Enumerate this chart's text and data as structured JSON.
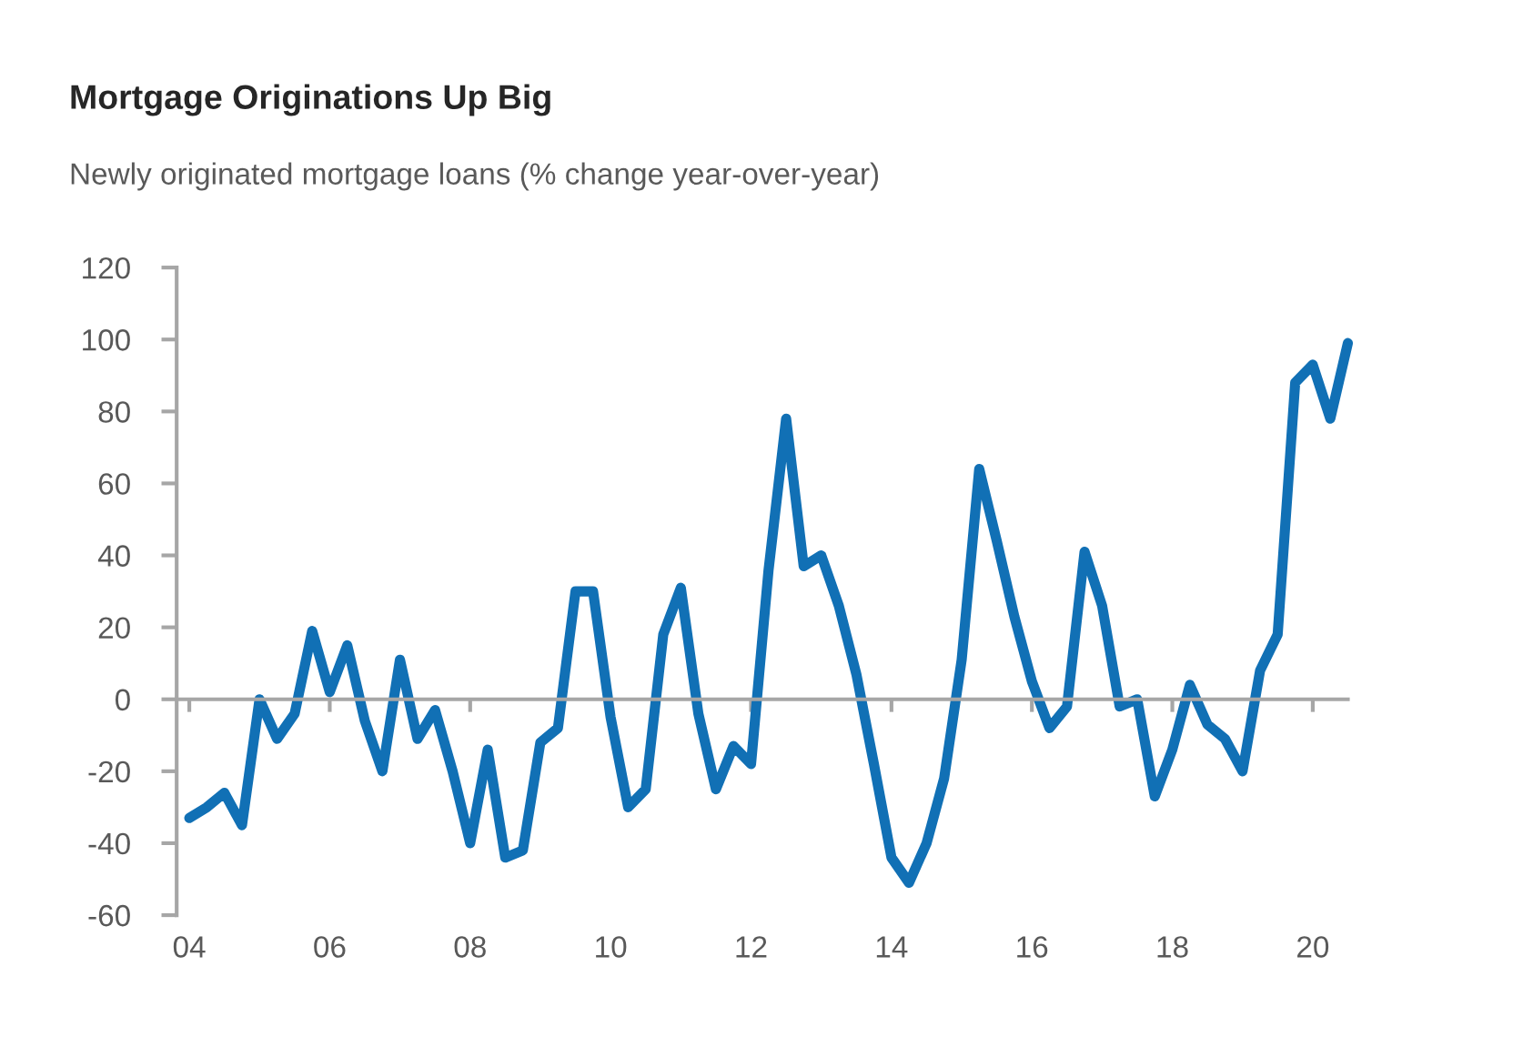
{
  "chart_data": {
    "type": "line",
    "title": "Mortgage Originations Up Big",
    "subtitle": "Newly originated mortgage loans (% change year-over-year)",
    "x": [
      2004,
      2004.25,
      2004.5,
      2004.75,
      2005,
      2005.25,
      2005.5,
      2005.75,
      2006,
      2006.25,
      2006.5,
      2006.75,
      2007,
      2007.25,
      2007.5,
      2007.75,
      2008,
      2008.25,
      2008.5,
      2008.75,
      2009,
      2009.25,
      2009.5,
      2009.75,
      2010,
      2010.25,
      2010.5,
      2010.75,
      2011,
      2011.25,
      2011.5,
      2011.75,
      2012,
      2012.25,
      2012.5,
      2012.75,
      2013,
      2013.25,
      2013.5,
      2013.75,
      2014,
      2014.25,
      2014.5,
      2014.75,
      2015,
      2015.25,
      2015.5,
      2015.75,
      2016,
      2016.25,
      2016.5,
      2016.75,
      2017,
      2017.25,
      2017.5,
      2017.75,
      2018,
      2018.25,
      2018.5,
      2018.75,
      2019,
      2019.25,
      2019.5,
      2019.75,
      2020,
      2020.25,
      2020.5
    ],
    "series": [
      {
        "color": "#1170b5",
        "values": [
          -33,
          -30,
          -26,
          -35,
          0,
          -11,
          -4,
          19,
          2,
          15,
          -6,
          -20,
          11,
          -11,
          -3,
          -20,
          -40,
          -14,
          -44,
          -42,
          -12,
          -8,
          30,
          30,
          -5,
          -30,
          -25,
          18,
          31,
          -4,
          -25,
          -13,
          -18,
          36,
          78,
          37,
          40,
          26,
          7,
          -18,
          -44,
          -51,
          -40,
          -22,
          11,
          64,
          44,
          23,
          5,
          -8,
          -2,
          41,
          26,
          -2,
          0,
          -27,
          -14,
          4,
          -7,
          -11,
          -20,
          8,
          18,
          88,
          93,
          78,
          99
        ]
      }
    ],
    "xlim": [
      2003.82,
      2020.5
    ],
    "xticks": [
      {
        "value": 2004,
        "label": "04"
      },
      {
        "value": 2006,
        "label": "06"
      },
      {
        "value": 2008,
        "label": "08"
      },
      {
        "value": 2010,
        "label": "10"
      },
      {
        "value": 2012,
        "label": "12"
      },
      {
        "value": 2014,
        "label": "14"
      },
      {
        "value": 2016,
        "label": "16"
      },
      {
        "value": 2018,
        "label": "18"
      },
      {
        "value": 2020,
        "label": "20"
      }
    ],
    "ylim": [
      -60,
      120
    ],
    "yticks": [
      -60,
      -40,
      -20,
      0,
      20,
      40,
      60,
      80,
      100,
      120
    ],
    "marker": "none",
    "line_style": "solid"
  }
}
